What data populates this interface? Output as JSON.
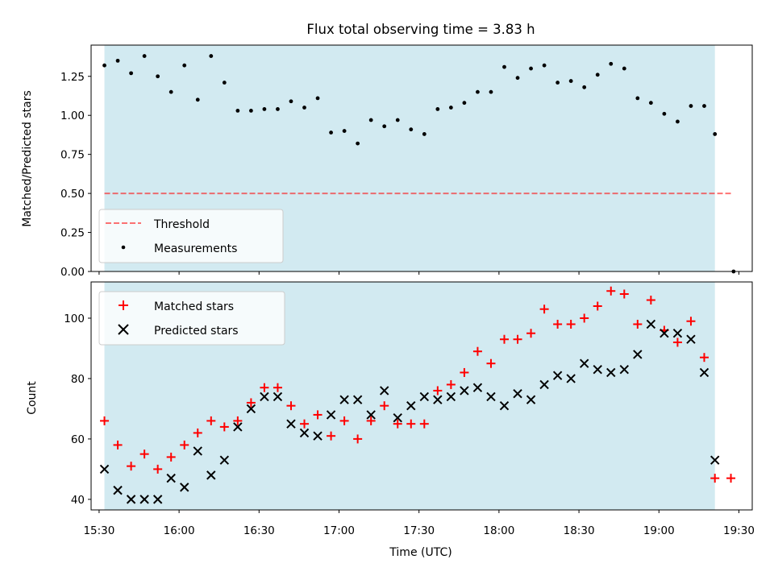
{
  "chart_data": {
    "type": "scatter",
    "title": "Flux total observing time = 3.83 h",
    "xlabel": "Time (UTC)",
    "x_ticks": [
      "15:30",
      "16:00",
      "16:30",
      "17:00",
      "17:30",
      "18:00",
      "18:30",
      "19:00",
      "19:30"
    ],
    "xlim": [
      "15:27",
      "19:35"
    ],
    "shaded_interval": [
      "15:32",
      "19:21"
    ],
    "colors": {
      "shade": "#add8e6",
      "threshold": "#ff0000",
      "matched": "#ff0000",
      "predicted": "#000000",
      "measurements": "#000000"
    },
    "top": {
      "ylabel": "Matched/Predicted stars",
      "ylim": [
        0,
        1.45
      ],
      "y_ticks": [
        "0.00",
        "0.25",
        "0.50",
        "0.75",
        "1.00",
        "1.25"
      ],
      "legend_position": "lower-left",
      "threshold": {
        "name": "Threshold",
        "value": 0.5,
        "x_range": [
          "15:32",
          "19:27"
        ]
      },
      "measurements": {
        "name": "Measurements",
        "x": [
          "15:32",
          "15:37",
          "15:42",
          "15:47",
          "15:52",
          "15:57",
          "16:02",
          "16:07",
          "16:12",
          "16:17",
          "16:22",
          "16:27",
          "16:32",
          "16:37",
          "16:42",
          "16:47",
          "16:52",
          "16:57",
          "17:02",
          "17:07",
          "17:12",
          "17:17",
          "17:22",
          "17:27",
          "17:32",
          "17:37",
          "17:42",
          "17:47",
          "17:52",
          "17:57",
          "18:02",
          "18:07",
          "18:12",
          "18:17",
          "18:22",
          "18:27",
          "18:32",
          "18:37",
          "18:42",
          "18:47",
          "18:52",
          "18:57",
          "19:02",
          "19:07",
          "19:12",
          "19:17",
          "19:21",
          "19:28"
        ],
        "y": [
          1.32,
          1.35,
          1.27,
          1.38,
          1.25,
          1.15,
          1.32,
          1.1,
          1.38,
          1.21,
          1.03,
          1.03,
          1.04,
          1.04,
          1.09,
          1.05,
          1.11,
          0.89,
          0.9,
          0.82,
          0.97,
          0.93,
          0.97,
          0.91,
          0.88,
          1.04,
          1.05,
          1.08,
          1.15,
          1.15,
          1.31,
          1.24,
          1.3,
          1.32,
          1.21,
          1.22,
          1.18,
          1.26,
          1.33,
          1.3,
          1.11,
          1.08,
          1.01,
          0.96,
          1.06,
          1.06,
          0.88,
          0.0
        ]
      }
    },
    "bottom": {
      "ylabel": "Count",
      "ylim": [
        36.5,
        112
      ],
      "y_ticks": [
        "40",
        "60",
        "80",
        "100"
      ],
      "legend_position": "upper-left",
      "series": [
        {
          "name": "Matched stars",
          "marker": "+",
          "x": [
            "15:32",
            "15:37",
            "15:42",
            "15:47",
            "15:52",
            "15:57",
            "16:02",
            "16:07",
            "16:12",
            "16:17",
            "16:22",
            "16:27",
            "16:32",
            "16:37",
            "16:42",
            "16:47",
            "16:52",
            "16:57",
            "17:02",
            "17:07",
            "17:12",
            "17:17",
            "17:22",
            "17:27",
            "17:32",
            "17:37",
            "17:42",
            "17:47",
            "17:52",
            "17:57",
            "18:02",
            "18:07",
            "18:12",
            "18:17",
            "18:22",
            "18:27",
            "18:32",
            "18:37",
            "18:42",
            "18:47",
            "18:52",
            "18:57",
            "19:02",
            "19:07",
            "19:12",
            "19:17",
            "19:21",
            "19:27"
          ],
          "y": [
            66,
            58,
            51,
            55,
            50,
            54,
            58,
            62,
            66,
            64,
            66,
            72,
            77,
            77,
            71,
            65,
            68,
            61,
            66,
            60,
            66,
            71,
            65,
            65,
            65,
            76,
            78,
            82,
            89,
            85,
            93,
            93,
            95,
            103,
            98,
            98,
            100,
            104,
            109,
            108,
            98,
            106,
            96,
            92,
            99,
            87,
            47,
            47
          ]
        },
        {
          "name": "Predicted stars",
          "marker": "x",
          "x": [
            "15:32",
            "15:37",
            "15:42",
            "15:47",
            "15:52",
            "15:57",
            "16:02",
            "16:07",
            "16:12",
            "16:17",
            "16:22",
            "16:27",
            "16:32",
            "16:37",
            "16:42",
            "16:47",
            "16:52",
            "16:57",
            "17:02",
            "17:07",
            "17:12",
            "17:17",
            "17:22",
            "17:27",
            "17:32",
            "17:37",
            "17:42",
            "17:47",
            "17:52",
            "17:57",
            "18:02",
            "18:07",
            "18:12",
            "18:17",
            "18:22",
            "18:27",
            "18:32",
            "18:37",
            "18:42",
            "18:47",
            "18:52",
            "18:57",
            "19:02",
            "19:07",
            "19:12",
            "19:17",
            "19:21"
          ],
          "y": [
            50,
            43,
            40,
            40,
            40,
            47,
            44,
            56,
            48,
            53,
            64,
            70,
            74,
            74,
            65,
            62,
            61,
            68,
            73,
            73,
            68,
            76,
            67,
            71,
            74,
            73,
            74,
            76,
            77,
            74,
            71,
            75,
            73,
            78,
            81,
            80,
            85,
            83,
            82,
            83,
            88,
            98,
            95,
            95,
            93,
            82,
            53
          ]
        }
      ]
    }
  }
}
